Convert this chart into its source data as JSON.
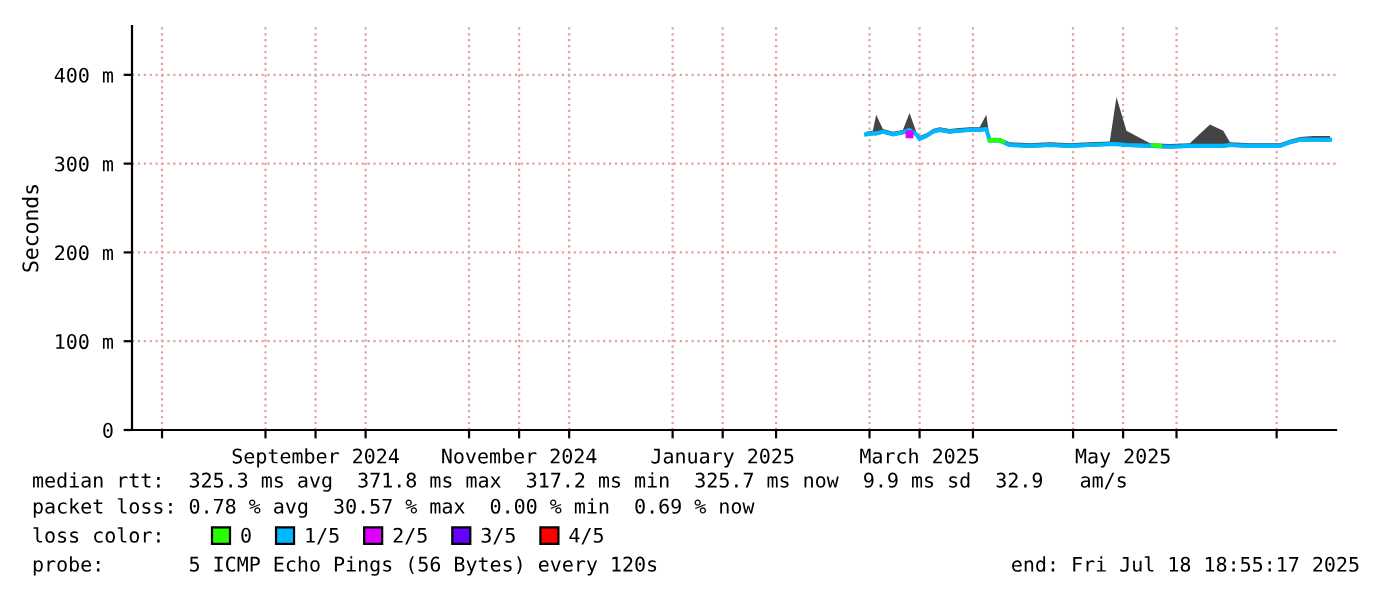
{
  "chart_data": {
    "type": "line",
    "ylabel": "Seconds",
    "xlim": [
      "2024-07-23",
      "2025-07-18T18:55"
    ],
    "xticks": [
      {
        "value": "2024-08-01",
        "label": null
      },
      {
        "value": "2024-09-01",
        "label": null
      },
      {
        "value": "2024-09-16",
        "label": "September 2024"
      },
      {
        "value": "2024-10-01",
        "label": null
      },
      {
        "value": "2024-11-01",
        "label": null
      },
      {
        "value": "2024-11-16",
        "label": "November 2024"
      },
      {
        "value": "2024-12-01",
        "label": null
      },
      {
        "value": "2025-01-01",
        "label": null
      },
      {
        "value": "2025-01-16",
        "label": "January 2025"
      },
      {
        "value": "2025-02-01",
        "label": null
      },
      {
        "value": "2025-03-01",
        "label": null
      },
      {
        "value": "2025-03-16",
        "label": "March 2025"
      },
      {
        "value": "2025-04-01",
        "label": null
      },
      {
        "value": "2025-05-01",
        "label": null
      },
      {
        "value": "2025-05-16",
        "label": "May 2025"
      },
      {
        "value": "2025-06-01",
        "label": null
      },
      {
        "value": "2025-07-01",
        "label": null
      }
    ],
    "ylim": [
      0,
      455
    ],
    "yticks": [
      {
        "value": 0,
        "label": "0"
      },
      {
        "value": 100,
        "label": "100 m"
      },
      {
        "value": 200,
        "label": "200 m"
      },
      {
        "value": 300,
        "label": "300 m"
      },
      {
        "value": 400,
        "label": "400 m"
      }
    ],
    "grid": true,
    "legend": "bottom",
    "legend_title": "loss color:",
    "series": [
      {
        "name": "0",
        "color": "#26ff00",
        "x": [
          "2025-04-06",
          "2025-04-08",
          "2025-04-10",
          "2025-04-29",
          "2025-05-01",
          "2025-05-25",
          "2025-05-27"
        ],
        "values": [
          326,
          327,
          325,
          null,
          null,
          321,
          320
        ]
      },
      {
        "name": "1/5",
        "color": "#00b8ff",
        "x": [
          "2025-02-28",
          "2025-03-02",
          "2025-03-03",
          "2025-03-05",
          "2025-03-08",
          "2025-03-11",
          "2025-03-13",
          "2025-03-15",
          "2025-03-16",
          "2025-03-18",
          "2025-03-20",
          "2025-03-22",
          "2025-03-25",
          "2025-03-28",
          "2025-03-31",
          "2025-04-03",
          "2025-04-05",
          "2025-04-06",
          "2025-04-09",
          "2025-04-12",
          "2025-04-18",
          "2025-04-24",
          "2025-04-30",
          "2025-05-06",
          "2025-05-12",
          "2025-05-14",
          "2025-05-17",
          "2025-05-24",
          "2025-05-30",
          "2025-06-05",
          "2025-06-11",
          "2025-06-15",
          "2025-06-17",
          "2025-06-23",
          "2025-07-02",
          "2025-07-05",
          "2025-07-08",
          "2025-07-12",
          "2025-07-17"
        ],
        "values": [
          333,
          334,
          334,
          336,
          333,
          335,
          338,
          333,
          328,
          331,
          336,
          338,
          336,
          337,
          338,
          338,
          339,
          326,
          326,
          321,
          320,
          321,
          320,
          321,
          322,
          322,
          321,
          320,
          319,
          320,
          320,
          320,
          321,
          320,
          320,
          324,
          327,
          327,
          327
        ],
        "lower": [
          331,
          332,
          332,
          334,
          331,
          333,
          336,
          331,
          326,
          329,
          334,
          336,
          334,
          335,
          336,
          336,
          337,
          324,
          324,
          319,
          318,
          319,
          318,
          319,
          320,
          320,
          319,
          318,
          317,
          318,
          318,
          318,
          319,
          318,
          318,
          322,
          325,
          325,
          325
        ],
        "upper": [
          336,
          337,
          355,
          339,
          336,
          338,
          357,
          336,
          331,
          334,
          339,
          341,
          339,
          340,
          341,
          341,
          355,
          329,
          329,
          324,
          323,
          324,
          323,
          324,
          325,
          375,
          337,
          323,
          322,
          323,
          344,
          337,
          324,
          323,
          323,
          327,
          330,
          331,
          331
        ]
      },
      {
        "name": "2/5",
        "color": "#dd00ff",
        "type": "scatter",
        "x": [
          "2025-03-13"
        ],
        "values": [
          333
        ]
      },
      {
        "name": "3/5",
        "color": "#6600ff"
      },
      {
        "name": "4/5",
        "color": "#ff0000"
      }
    ],
    "annotations": [
      "median rtt:  325.3 ms avg  371.8 ms max  317.2 ms min  325.7 ms now  9.9 ms sd  32.9   am/s",
      "packet loss: 0.78 % avg  30.57 % max  0.00 % min  0.69 % now",
      "probe:       5 ICMP Echo Pings (56 Bytes) every 120s",
      "end: Fri Jul 18 18:55:17 2025"
    ]
  }
}
